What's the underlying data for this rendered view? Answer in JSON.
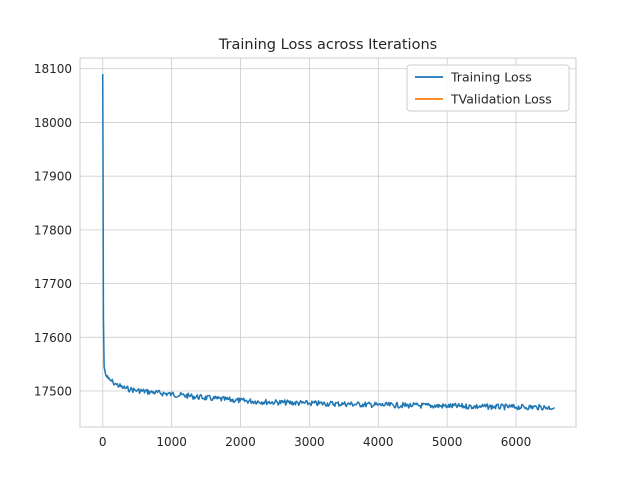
{
  "chart_data": {
    "type": "line",
    "title": "Training Loss across Iterations",
    "xlabel": "",
    "ylabel": "",
    "xlim": [
      -330,
      6870
    ],
    "ylim": [
      17433,
      18120
    ],
    "xticks": [
      0,
      1000,
      2000,
      3000,
      4000,
      5000,
      6000
    ],
    "yticks": [
      17500,
      17600,
      17700,
      17800,
      17900,
      18000,
      18100
    ],
    "grid": true,
    "legend_position": "top-right",
    "series": [
      {
        "name": "Training Loss",
        "color": "#1f77b4",
        "x": [
          0,
          5,
          10,
          20,
          40,
          60,
          80,
          100,
          150,
          200,
          300,
          400,
          500,
          700,
          1000,
          1300,
          1600,
          2000,
          2500,
          3000,
          3500,
          4000,
          4500,
          5000,
          5500,
          6000,
          6300,
          6560
        ],
        "y": [
          18090,
          17900,
          17640,
          17545,
          17532,
          17526,
          17523,
          17521,
          17516,
          17512,
          17506,
          17503,
          17501,
          17498,
          17494,
          17490,
          17486,
          17482,
          17479,
          17477,
          17476,
          17474,
          17473,
          17472,
          17471,
          17470,
          17470,
          17469
        ]
      },
      {
        "name": "TValidation Loss",
        "color": "#ff7f0e",
        "x": [],
        "y": []
      }
    ]
  }
}
